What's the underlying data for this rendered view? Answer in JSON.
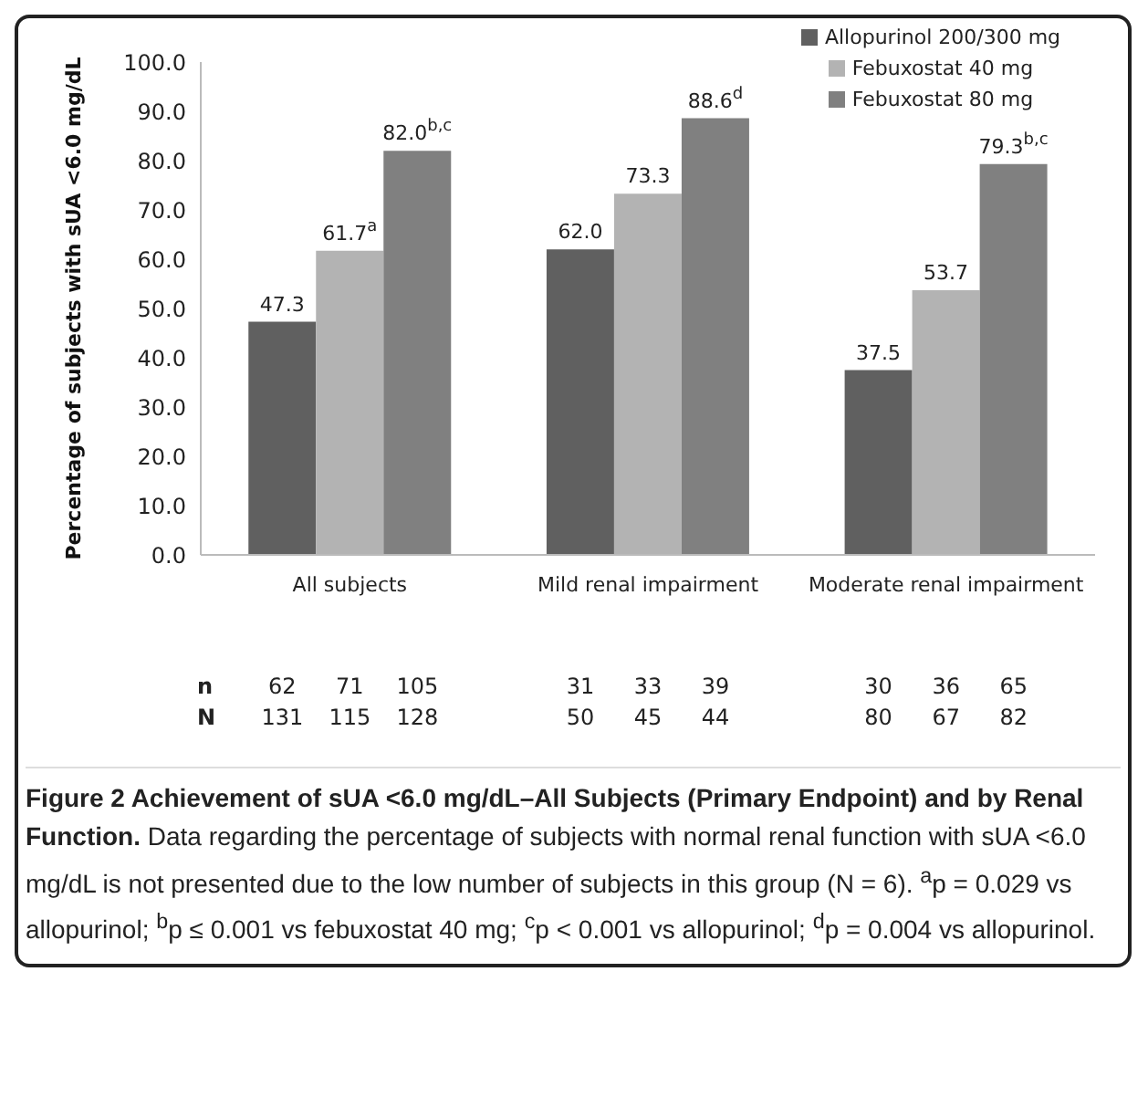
{
  "chart_data": {
    "type": "bar",
    "title": "Figure 2 Achievement of sUA <6.0 mg/dL–All Subjects (Primary Endpoint) and by Renal Function.",
    "ylabel": "Percentage of subjects with sUA <6.0 mg/dL",
    "categories": [
      "All subjects",
      "Mild renal impairment",
      "Moderate renal impairment"
    ],
    "series": [
      {
        "name": "Allopurinol 200/300 mg",
        "color": "#606060",
        "values": [
          47.3,
          62.0,
          37.5
        ],
        "value_labels": [
          "47.3",
          "62.0",
          "37.5"
        ]
      },
      {
        "name": "Febuxostat 40 mg",
        "color": "#b3b3b3",
        "values": [
          61.7,
          73.3,
          53.7
        ],
        "value_labels": [
          "61.7$^{a}$",
          "73.3",
          "53.7"
        ]
      },
      {
        "name": "Febuxostat 80 mg",
        "color": "#808080",
        "values": [
          82.0,
          88.6,
          79.3
        ],
        "value_labels": [
          "82.0$^{b,c}$",
          "88.6$^{d}$",
          "79.3$^{b,c}$"
        ]
      }
    ],
    "ylim": [
      0,
      100
    ],
    "yticks": [
      {
        "value": 0,
        "label": "0.0"
      },
      {
        "value": 10,
        "label": "10.0"
      },
      {
        "value": 20,
        "label": "20.0"
      },
      {
        "value": 30,
        "label": "30.0"
      },
      {
        "value": 40,
        "label": "40.0"
      },
      {
        "value": 50,
        "label": "50.0"
      },
      {
        "value": 60,
        "label": "60.0"
      },
      {
        "value": 70,
        "label": "70.0"
      },
      {
        "value": 80,
        "label": "80.0"
      },
      {
        "value": 90,
        "label": "90.0"
      },
      {
        "value": 100,
        "label": "100.0"
      }
    ],
    "grid": false,
    "legend": "top right",
    "annotations": [
      "n",
      "62",
      "71",
      "105",
      "31",
      "33",
      "39",
      "30",
      "36",
      "65",
      "N",
      "131",
      "115",
      "128",
      "50",
      "45",
      "44",
      "80",
      "67",
      "82",
      "Data regarding the percentage of subjects with normal renal function with sUA <6.0 mg/dL is not presented due to the low number of subjects in this group (N = 6). $^{a}$p = 0.029 vs allopurinol; $^{b}$p ≤ 0.001 vs febuxostat 40 mg; $^{c}$p < 0.001 vs allopurinol; $^{d}$p = 0.004 vs allopurinol."
    ]
  }
}
